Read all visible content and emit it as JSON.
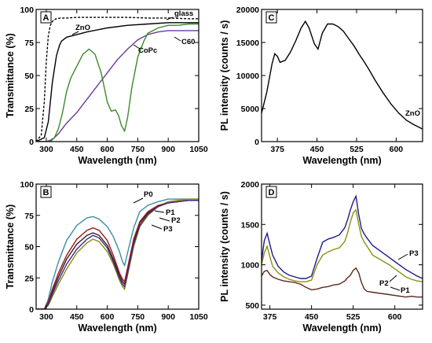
{
  "chart_data": [
    {
      "panel": "A",
      "type": "line",
      "xlabel": "Wavelength (nm)",
      "ylabel": "Transmittance (%)",
      "xlim": [
        250,
        1050
      ],
      "ylim": [
        0,
        100
      ],
      "xticks": [
        300,
        450,
        600,
        750,
        900,
        1050
      ],
      "yticks": [
        0,
        25,
        50,
        75,
        100
      ],
      "series": [
        {
          "name": "glass",
          "color": "#000000",
          "dash": true,
          "x": [
            250,
            275,
            290,
            300,
            310,
            320,
            335,
            350,
            370,
            400,
            450,
            500,
            600,
            700,
            800,
            900,
            1000,
            1050
          ],
          "y": [
            0,
            5,
            30,
            60,
            80,
            88,
            92,
            93,
            93.5,
            93.5,
            94,
            94,
            94,
            94,
            93.5,
            93.5,
            93,
            93
          ]
        },
        {
          "name": "ZnO",
          "color": "#000000",
          "x": [
            250,
            290,
            310,
            330,
            350,
            365,
            375,
            400,
            450,
            500,
            600,
            700,
            800,
            900,
            1000,
            1050
          ],
          "y": [
            0,
            3,
            15,
            45,
            65,
            73,
            76,
            79,
            81,
            83,
            86,
            88,
            89,
            90,
            90,
            90
          ]
        },
        {
          "name": "C60",
          "color": "#6b3a9c",
          "x": [
            250,
            300,
            320,
            340,
            360,
            380,
            400,
            450,
            500,
            550,
            600,
            650,
            700,
            750,
            800,
            850,
            900,
            950,
            1000,
            1050
          ],
          "y": [
            0,
            0,
            1,
            3,
            6,
            10,
            14,
            22,
            32,
            42,
            52,
            62,
            70,
            77,
            81,
            83,
            84,
            84,
            84,
            84
          ]
        },
        {
          "name": "CoPc",
          "color": "#3c8a28",
          "x": [
            250,
            320,
            340,
            360,
            380,
            400,
            420,
            450,
            480,
            510,
            540,
            570,
            600,
            620,
            640,
            655,
            670,
            685,
            700,
            720,
            750,
            780,
            800,
            850,
            900,
            950,
            1000,
            1050
          ],
          "y": [
            0,
            0,
            3,
            10,
            22,
            38,
            48,
            57,
            66,
            70,
            66,
            52,
            30,
            23,
            24,
            20,
            12,
            8,
            18,
            40,
            64,
            76,
            82,
            86,
            88,
            88,
            89,
            89
          ]
        }
      ],
      "annotations": [
        "glass",
        "ZnO",
        "C60",
        "CoPc"
      ]
    },
    {
      "panel": "B",
      "type": "line",
      "xlabel": "Wavelength (nm)",
      "ylabel": "Transmittance (%)",
      "xlim": [
        250,
        1050
      ],
      "ylim": [
        0,
        100
      ],
      "xticks": [
        300,
        450,
        600,
        750,
        900,
        1050
      ],
      "yticks": [
        0,
        25,
        50,
        75,
        100
      ],
      "series": [
        {
          "name": "P0",
          "color": "#3a8ea8",
          "x": [
            250,
            290,
            310,
            330,
            360,
            400,
            450,
            500,
            530,
            560,
            600,
            630,
            660,
            675,
            685,
            700,
            730,
            760,
            800,
            850,
            900,
            950,
            1000,
            1050
          ],
          "y": [
            0,
            0,
            8,
            22,
            38,
            55,
            67,
            73,
            74,
            72,
            66,
            58,
            46,
            38,
            35,
            45,
            65,
            78,
            83,
            86,
            88,
            88,
            88,
            88
          ]
        },
        {
          "name": "P1",
          "color": "#8b8b10",
          "x": [
            250,
            290,
            310,
            330,
            360,
            400,
            450,
            500,
            530,
            560,
            600,
            630,
            660,
            675,
            685,
            700,
            730,
            760,
            800,
            850,
            900,
            950,
            1000,
            1050
          ],
          "y": [
            0,
            0,
            3,
            10,
            20,
            32,
            45,
            53,
            56,
            54,
            46,
            36,
            23,
            18,
            16,
            27,
            50,
            66,
            75,
            82,
            86,
            87,
            88,
            88
          ]
        },
        {
          "name": "P2",
          "color": "#3d1f18",
          "x": [
            250,
            290,
            310,
            330,
            360,
            400,
            450,
            500,
            530,
            560,
            600,
            630,
            660,
            675,
            685,
            700,
            730,
            760,
            800,
            850,
            900,
            950,
            1000,
            1050
          ],
          "y": [
            0,
            0,
            5,
            14,
            26,
            40,
            52,
            59,
            61,
            59,
            51,
            40,
            27,
            22,
            20,
            31,
            54,
            69,
            77,
            82,
            85,
            86,
            87,
            87
          ]
        },
        {
          "name": "P3",
          "color": "#9c1818",
          "x": [
            250,
            290,
            310,
            330,
            360,
            400,
            450,
            500,
            530,
            560,
            600,
            630,
            660,
            675,
            685,
            700,
            730,
            760,
            800,
            850,
            900,
            950,
            1000,
            1050
          ],
          "y": [
            0,
            0,
            6,
            16,
            29,
            43,
            56,
            63,
            65,
            63,
            55,
            43,
            29,
            24,
            22,
            33,
            56,
            70,
            78,
            83,
            85,
            86,
            87,
            87
          ]
        },
        {
          "name": "",
          "color": "#3b2a8c",
          "x": [
            250,
            290,
            310,
            330,
            360,
            400,
            450,
            500,
            530,
            560,
            600,
            630,
            660,
            675,
            685,
            700,
            730,
            760,
            800,
            850,
            900,
            950,
            1000,
            1050
          ],
          "y": [
            0,
            0,
            4,
            12,
            23,
            36,
            48,
            56,
            59,
            57,
            49,
            38,
            25,
            20,
            18,
            29,
            52,
            67,
            76,
            82,
            85,
            86,
            87,
            87
          ]
        }
      ],
      "annotations": [
        "P0",
        "P1",
        "P2",
        "P3"
      ]
    },
    {
      "panel": "C",
      "type": "line",
      "xlabel": "Wavelength (nm)",
      "ylabel": "PL intensity (counts / s)",
      "xlim": [
        345,
        650
      ],
      "ylim": [
        0,
        20000
      ],
      "xticks": [
        375,
        450,
        525,
        600
      ],
      "yticks": [
        0,
        5000,
        10000,
        15000,
        20000
      ],
      "series": [
        {
          "name": "ZnO",
          "color": "#000000",
          "x": [
            345,
            355,
            365,
            370,
            375,
            380,
            390,
            400,
            410,
            420,
            428,
            435,
            445,
            452,
            460,
            470,
            480,
            490,
            500,
            510,
            520,
            530,
            540,
            550,
            560,
            575,
            590,
            605,
            620,
            635,
            650
          ],
          "y": [
            4300,
            7500,
            11800,
            13300,
            12900,
            12000,
            12300,
            13600,
            15300,
            17200,
            18200,
            17200,
            14800,
            14000,
            16400,
            17800,
            17800,
            17400,
            16700,
            15600,
            14500,
            13200,
            12000,
            10700,
            9300,
            7400,
            5700,
            4300,
            3200,
            2500,
            1900
          ]
        }
      ],
      "annotations": [
        "ZnO"
      ]
    },
    {
      "panel": "D",
      "type": "line",
      "xlabel": "Wavelength (nm)",
      "ylabel": "PL intensity (counts / s)",
      "xlim": [
        360,
        650
      ],
      "ylim": [
        450,
        2000
      ],
      "xticks": [
        375,
        450,
        525,
        600
      ],
      "yticks": [
        500,
        1000,
        1500,
        2000
      ],
      "series": [
        {
          "name": "P1",
          "color": "#5a2a1c",
          "x": [
            360,
            365,
            370,
            375,
            380,
            390,
            400,
            410,
            420,
            430,
            440,
            450,
            460,
            470,
            480,
            490,
            500,
            510,
            515,
            520,
            525,
            530,
            535,
            540,
            545,
            550,
            560,
            570,
            580,
            590,
            600,
            610,
            620,
            630,
            640,
            650
          ],
          "y": [
            860,
            920,
            930,
            880,
            850,
            820,
            800,
            790,
            780,
            760,
            720,
            690,
            700,
            720,
            730,
            750,
            760,
            800,
            840,
            870,
            930,
            960,
            900,
            780,
            700,
            670,
            660,
            650,
            640,
            630,
            620,
            610,
            600,
            610,
            600,
            600
          ]
        },
        {
          "name": "P2",
          "color": "#8a9010",
          "x": [
            360,
            365,
            370,
            375,
            380,
            390,
            400,
            410,
            420,
            430,
            440,
            450,
            460,
            470,
            480,
            490,
            500,
            510,
            515,
            520,
            525,
            530,
            535,
            540,
            545,
            550,
            560,
            570,
            580,
            590,
            600,
            610,
            620,
            630,
            640,
            650
          ],
          "y": [
            1000,
            1150,
            1230,
            1100,
            980,
            900,
            850,
            820,
            800,
            790,
            790,
            810,
            1000,
            1120,
            1160,
            1190,
            1210,
            1290,
            1400,
            1530,
            1640,
            1680,
            1500,
            1350,
            1280,
            1230,
            1120,
            1080,
            1040,
            1000,
            950,
            900,
            850,
            820,
            800,
            790
          ]
        },
        {
          "name": "P3",
          "color": "#1c1a8c",
          "x": [
            360,
            365,
            370,
            375,
            380,
            390,
            400,
            410,
            420,
            430,
            440,
            450,
            460,
            470,
            480,
            490,
            500,
            510,
            515,
            520,
            525,
            530,
            535,
            540,
            545,
            550,
            560,
            570,
            580,
            590,
            600,
            610,
            620,
            630,
            640,
            650
          ],
          "y": [
            1050,
            1300,
            1390,
            1250,
            1120,
            980,
            910,
            870,
            850,
            830,
            830,
            860,
            1080,
            1280,
            1320,
            1340,
            1370,
            1460,
            1560,
            1680,
            1780,
            1850,
            1620,
            1450,
            1380,
            1330,
            1240,
            1190,
            1140,
            1090,
            1040,
            990,
            940,
            900,
            860,
            830
          ]
        }
      ],
      "annotations": [
        "P1",
        "P2",
        "P3"
      ]
    }
  ]
}
